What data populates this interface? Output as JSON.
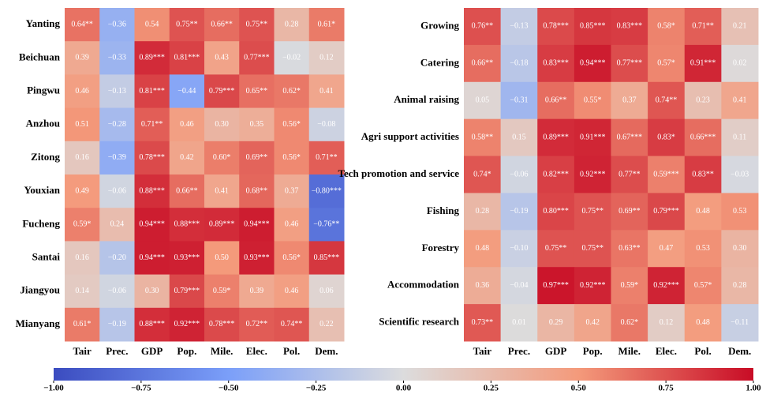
{
  "chart_data": [
    {
      "type": "heatmap",
      "colormap": "coolwarm",
      "zlim": [
        -1,
        1
      ],
      "x": [
        "Tair",
        "Prec.",
        "GDP",
        "Pop.",
        "Mile.",
        "Elec.",
        "Pol.",
        "Dem."
      ],
      "y": [
        "Yanting",
        "Beichuan",
        "Pingwu",
        "Anzhou",
        "Zitong",
        "Youxian",
        "Fucheng",
        "Santai",
        "Jiangyou",
        "Mianyang"
      ],
      "values": [
        [
          0.64,
          -0.36,
          0.54,
          0.75,
          0.66,
          0.75,
          0.28,
          0.61
        ],
        [
          0.39,
          -0.33,
          0.89,
          0.81,
          0.43,
          0.77,
          -0.02,
          0.12
        ],
        [
          0.46,
          -0.13,
          0.81,
          -0.44,
          0.79,
          0.65,
          0.62,
          0.41
        ],
        [
          0.51,
          -0.28,
          0.71,
          0.46,
          0.3,
          0.35,
          0.56,
          -0.08
        ],
        [
          0.16,
          -0.39,
          0.78,
          0.42,
          0.6,
          0.69,
          0.56,
          0.71
        ],
        [
          0.49,
          -0.06,
          0.88,
          0.66,
          0.41,
          0.68,
          0.37,
          -0.8
        ],
        [
          0.59,
          0.24,
          0.94,
          0.88,
          0.89,
          0.94,
          0.46,
          -0.76
        ],
        [
          0.16,
          -0.2,
          0.94,
          0.93,
          0.5,
          0.93,
          0.56,
          0.85
        ],
        [
          0.14,
          -0.06,
          0.3,
          0.79,
          0.59,
          0.39,
          0.46,
          0.06
        ],
        [
          0.61,
          -0.19,
          0.88,
          0.92,
          0.78,
          0.72,
          0.74,
          0.22
        ]
      ],
      "value_labels": [
        [
          "0.64**",
          "−0.36",
          "0.54",
          "0.75**",
          "0.66**",
          "0.75**",
          "0.28",
          "0.61*"
        ],
        [
          "0.39",
          "−0.33",
          "0.89***",
          "0.81***",
          "0.43",
          "0.77***",
          "−0.02",
          "0.12"
        ],
        [
          "0.46",
          "−0.13",
          "0.81***",
          "−0.44",
          "0.79***",
          "0.65**",
          "0.62*",
          "0.41"
        ],
        [
          "0.51",
          "−0.28",
          "0.71**",
          "0.46",
          "0.30",
          "0.35",
          "0.56*",
          "−0.08"
        ],
        [
          "0.16",
          "−0.39",
          "0.78***",
          "0.42",
          "0.60*",
          "0.69**",
          "0.56*",
          "0.71**"
        ],
        [
          "0.49",
          "−0.06",
          "0.88***",
          "0.66**",
          "0.41",
          "0.68**",
          "0.37",
          "−0.80***"
        ],
        [
          "0.59*",
          "0.24",
          "0.94***",
          "0.88***",
          "0.89***",
          "0.94***",
          "0.46",
          "−0.76**"
        ],
        [
          "0.16",
          "−0.20",
          "0.94***",
          "0.93***",
          "0.50",
          "0.93***",
          "0.56*",
          "0.85***"
        ],
        [
          "0.14",
          "−0.06",
          "0.30",
          "0.79***",
          "0.59*",
          "0.39",
          "0.46",
          "0.06"
        ],
        [
          "0.61*",
          "−0.19",
          "0.88***",
          "0.92***",
          "0.78***",
          "0.72**",
          "0.74**",
          "0.22"
        ]
      ]
    },
    {
      "type": "heatmap",
      "colormap": "coolwarm",
      "zlim": [
        -1,
        1
      ],
      "x": [
        "Tair",
        "Prec.",
        "GDP",
        "Pop.",
        "Mile.",
        "Elec.",
        "Pol.",
        "Dem."
      ],
      "y": [
        "Growing",
        "Catering",
        "Animal raising",
        "Agri support activities",
        "Tech promotion and service",
        "Fishing",
        "Forestry",
        "Accommodation",
        "Scientific research"
      ],
      "values": [
        [
          0.76,
          -0.13,
          0.78,
          0.85,
          0.83,
          0.58,
          0.71,
          0.21
        ],
        [
          0.66,
          -0.18,
          0.83,
          0.94,
          0.77,
          0.57,
          0.91,
          0.02
        ],
        [
          0.05,
          -0.31,
          0.66,
          0.55,
          0.37,
          0.74,
          0.23,
          0.41
        ],
        [
          0.58,
          0.15,
          0.89,
          0.91,
          0.67,
          0.83,
          0.66,
          0.11
        ],
        [
          0.74,
          -0.06,
          0.82,
          0.92,
          0.77,
          0.59,
          0.83,
          -0.03
        ],
        [
          0.28,
          -0.19,
          0.8,
          0.75,
          0.69,
          0.79,
          0.48,
          0.53
        ],
        [
          0.48,
          -0.1,
          0.75,
          0.75,
          0.63,
          0.47,
          0.53,
          0.3
        ],
        [
          0.36,
          -0.04,
          0.97,
          0.92,
          0.59,
          0.92,
          0.57,
          0.28
        ],
        [
          0.73,
          0.01,
          0.29,
          0.42,
          0.62,
          0.12,
          0.48,
          -0.11
        ]
      ],
      "value_labels": [
        [
          "0.76**",
          "−0.13",
          "0.78***",
          "0.85***",
          "0.83***",
          "0.58*",
          "0.71**",
          "0.21"
        ],
        [
          "0.66**",
          "−0.18",
          "0.83***",
          "0.94***",
          "0.77***",
          "0.57*",
          "0.91***",
          "0.02"
        ],
        [
          "0.05",
          "−0.31",
          "0.66**",
          "0.55*",
          "0.37",
          "0.74**",
          "0.23",
          "0.41"
        ],
        [
          "0.58**",
          "0.15",
          "0.89***",
          "0.91***",
          "0.67***",
          "0.83*",
          "0.66***",
          "0.11"
        ],
        [
          "0.74*",
          "−0.06",
          "0.82***",
          "0.92***",
          "0.77**",
          "0.59***",
          "0.83**",
          "−0.03"
        ],
        [
          "0.28",
          "−0.19",
          "0.80***",
          "0.75**",
          "0.69**",
          "0.79***",
          "0.48",
          "0.53"
        ],
        [
          "0.48",
          "−0.10",
          "0.75**",
          "0.75**",
          "0.63**",
          "0.47",
          "0.53",
          "0.30"
        ],
        [
          "0.36",
          "−0.04",
          "0.97***",
          "0.92***",
          "0.59*",
          "0.92***",
          "0.57*",
          "0.28"
        ],
        [
          "0.73**",
          "0.01",
          "0.29",
          "0.42",
          "0.62*",
          "0.12",
          "0.48",
          "−0.11"
        ]
      ]
    },
    {
      "type": "colorbar",
      "colormap": "coolwarm",
      "xlim": [
        -1,
        1
      ],
      "xticks": [
        {
          "value": -1,
          "label": "−1.00"
        },
        {
          "value": -0.75,
          "label": "−0.75"
        },
        {
          "value": -0.5,
          "label": "−0.50"
        },
        {
          "value": -0.25,
          "label": "−0.25"
        },
        {
          "value": 0,
          "label": "0.00"
        },
        {
          "value": 0.25,
          "label": "0.25"
        },
        {
          "value": 0.5,
          "label": "0.50"
        },
        {
          "value": 0.75,
          "label": "0.75"
        },
        {
          "value": 1,
          "label": "1.00"
        }
      ]
    }
  ]
}
